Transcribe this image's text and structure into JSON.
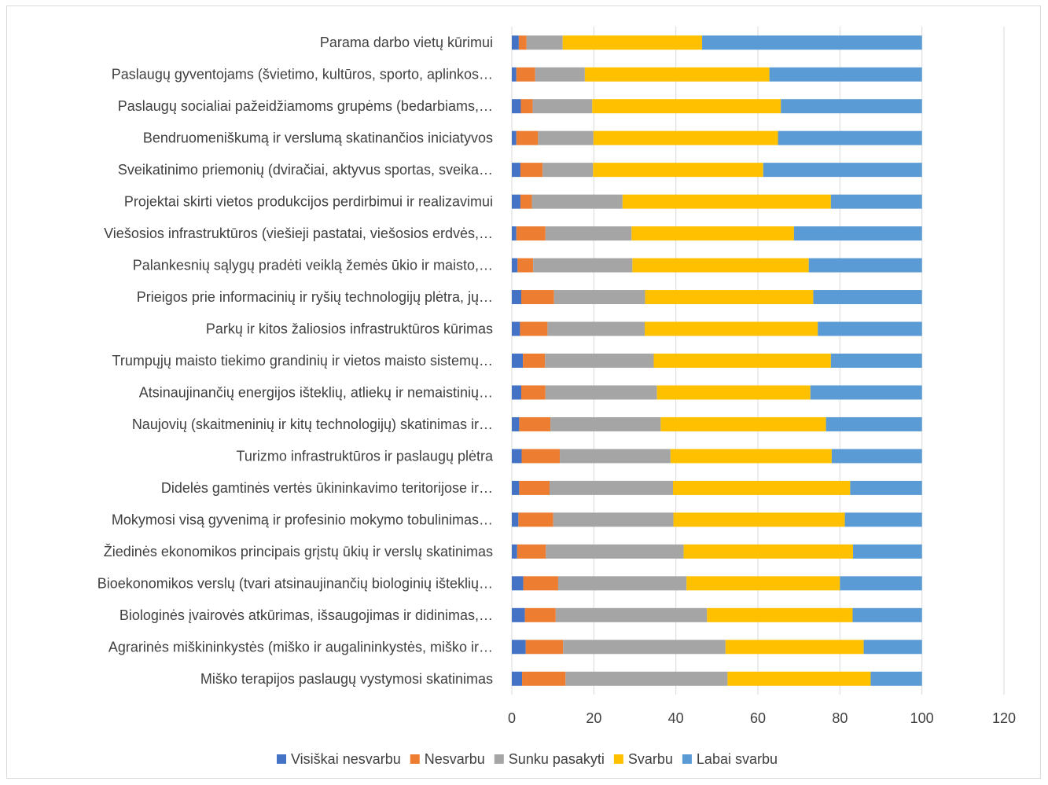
{
  "chart_data": {
    "type": "bar",
    "orientation": "horizontal",
    "stacked": true,
    "categories": [
      "Parama darbo vietų kūrimui",
      "Paslaugų gyventojams (švietimo, kultūros, sporto, aplinkos…",
      "Paslaugų socialiai pažeidžiamoms grupėms (bedarbiams,…",
      "Bendruomeniškumą ir verslumą skatinančios iniciatyvos",
      "Sveikatinimo priemonių (dviračiai, aktyvus sportas, sveika…",
      "Projektai skirti vietos produkcijos perdirbimui ir realizavimui",
      "Viešosios infrastruktūros (viešieji pastatai, viešosios erdvės,…",
      "Palankesnių sąlygų pradėti veiklą žemės ūkio ir maisto,…",
      "Prieigos prie informacinių ir ryšių technologijų plėtra, jų…",
      "Parkų ir kitos žaliosios infrastruktūros kūrimas",
      "Trumpųjų maisto tiekimo grandinių ir vietos maisto sistemų…",
      "Atsinaujinančių energijos išteklių, atliekų ir nemaistinių…",
      "Naujovių (skaitmeninių ir kitų technologijų) skatinimas ir…",
      "Turizmo infrastruktūros ir paslaugų plėtra",
      "Didelės gamtinės vertės ūkininkavimo teritorijose ir…",
      "Mokymosi visą gyvenimą ir profesinio mokymo tobulinimas…",
      "Žiedinės ekonomikos principais grįstų ūkių ir verslų skatinimas",
      "Bioekonomikos verslų (tvari atsinaujinančių biologinių išteklių…",
      "Biologinės įvairovės atkūrimas, išsaugojimas ir didinimas,…",
      "Agrarinės miškininkystės (miško ir augalininkystės, miško ir…",
      "Miško terapijos paslaugų vystymosi skatinimas"
    ],
    "series": [
      {
        "name": "Visiškai nesvarbu",
        "color": "#4472C4",
        "values": [
          1.7,
          1.1,
          2.2,
          1.1,
          2.1,
          2.1,
          1.1,
          1.4,
          2.3,
          2.0,
          2.7,
          2.3,
          1.8,
          2.4,
          1.8,
          1.6,
          1.3,
          2.8,
          3.2,
          3.4,
          2.5
        ]
      },
      {
        "name": "Nesvarbu",
        "color": "#ED7D31",
        "values": [
          1.9,
          4.6,
          2.9,
          5.3,
          5.4,
          2.8,
          7.1,
          3.8,
          8.0,
          6.7,
          5.4,
          5.9,
          7.6,
          9.3,
          7.4,
          8.5,
          7.0,
          8.5,
          7.5,
          9.1,
          10.6
        ]
      },
      {
        "name": "Sunku pasakyti",
        "color": "#A5A5A5",
        "values": [
          8.8,
          12.1,
          14.5,
          13.5,
          12.3,
          22.1,
          21.0,
          24.2,
          22.2,
          23.7,
          26.5,
          27.2,
          26.9,
          27.0,
          30.1,
          29.3,
          33.6,
          31.3,
          36.9,
          39.6,
          39.5
        ]
      },
      {
        "name": "Svarbu",
        "color": "#FFC000",
        "values": [
          34.0,
          45.0,
          46.0,
          45.0,
          41.5,
          50.8,
          39.6,
          43.0,
          41.0,
          42.2,
          43.2,
          37.4,
          40.3,
          39.3,
          43.2,
          41.8,
          41.3,
          37.4,
          35.5,
          33.7,
          34.9
        ]
      },
      {
        "name": "Labai svarbu",
        "color": "#5B9BD5",
        "values": [
          53.6,
          37.2,
          34.4,
          35.1,
          38.7,
          22.2,
          31.2,
          27.6,
          26.5,
          25.4,
          22.2,
          27.2,
          23.4,
          22.0,
          17.5,
          18.8,
          16.8,
          20.0,
          16.9,
          14.2,
          12.5
        ]
      }
    ],
    "xlim": [
      0,
      120
    ],
    "xticks": [
      "0",
      "20",
      "40",
      "60",
      "80",
      "100",
      "120"
    ],
    "xlabel": "",
    "ylabel": "",
    "grid": "vertical",
    "legend_position": "bottom"
  }
}
